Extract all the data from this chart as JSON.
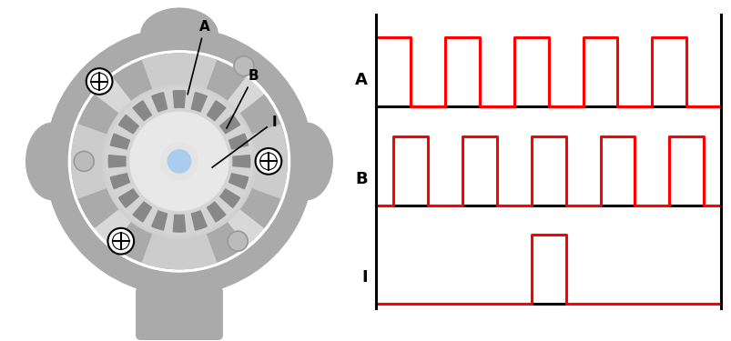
{
  "bg_color": "#ffffff",
  "signal_color": "#ff0000",
  "axis_color": "#000000",
  "label_color": "#000000",
  "label_fontsize": 13,
  "signal_linewidth": 2.2,
  "axis_linewidth": 2.2,
  "gray_dark": "#999999",
  "gray_mid": "#aaaaaa",
  "gray_light": "#cccccc",
  "gray_lighter": "#d8d8d8",
  "gray_lightest": "#e8e8e8",
  "gear_color": "#888888",
  "shaft_blue": "#aaccee",
  "num_cycles_A": 5,
  "num_cycles_B": 5,
  "total_steps": 20,
  "A_pattern": [
    1,
    1,
    0,
    0,
    1,
    1,
    0,
    0,
    1,
    1,
    0,
    0,
    1,
    1,
    0,
    0,
    1,
    1,
    0,
    0
  ],
  "B_pattern": [
    0,
    1,
    1,
    0,
    0,
    1,
    1,
    0,
    0,
    1,
    1,
    0,
    0,
    1,
    1,
    0,
    0,
    1,
    1,
    0
  ],
  "I_pattern": [
    0,
    0,
    0,
    0,
    0,
    0,
    0,
    0,
    0,
    1,
    1,
    0,
    0,
    0,
    0,
    0,
    0,
    0,
    0,
    0
  ]
}
